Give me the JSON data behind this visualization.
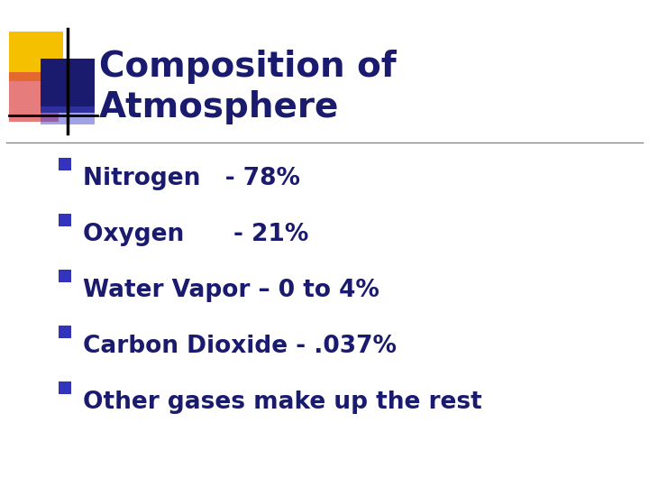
{
  "title_line1": "Composition of",
  "title_line2": "Atmosphere",
  "title_color": "#1a1a6e",
  "title_fontsize": 28,
  "bullet_color": "#1a1a6e",
  "bullet_fontsize": 19,
  "bullet_marker_color": "#3333bb",
  "background_color": "#ffffff",
  "items": [
    "Nitrogen   - 78%",
    "Oxygen      - 21%",
    "Water Vapor – 0 to 4%",
    "Carbon Dioxide - .037%",
    "Other gases make up the rest"
  ],
  "divider_color": "#888888",
  "logo_yellow": "#f5c000",
  "logo_blue": "#1a1a6e",
  "logo_red": "#dd4444",
  "logo_blue_light": "#4444cc"
}
